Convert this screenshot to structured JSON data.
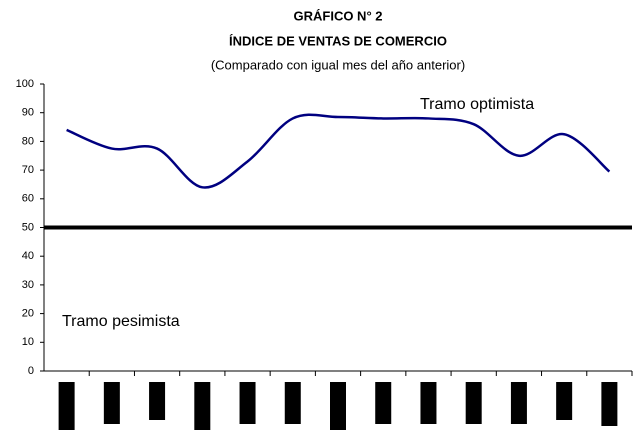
{
  "chart_data": {
    "type": "line",
    "title": "GRÁFICO N° 2",
    "subtitle": "ÍNDICE DE VENTAS DE COMERCIO",
    "note": "(Comparado con igual mes del año anterior)",
    "categories": [
      null,
      null,
      null,
      null,
      null,
      null,
      null,
      null,
      null,
      null,
      null,
      null,
      null
    ],
    "series": [
      {
        "name": "Índice",
        "color": "#000080",
        "values": [
          84,
          77.5,
          77.5,
          64,
          73,
          88,
          88.5,
          88,
          88,
          86,
          75,
          82.5,
          69.5
        ]
      }
    ],
    "threshold": 50,
    "annotations": [
      "Tramo optimista",
      "Tramo pesimista"
    ],
    "ylim": [
      0,
      100
    ],
    "yticks": [
      0,
      10,
      20,
      30,
      40,
      50,
      60,
      70,
      80,
      90,
      100
    ]
  }
}
